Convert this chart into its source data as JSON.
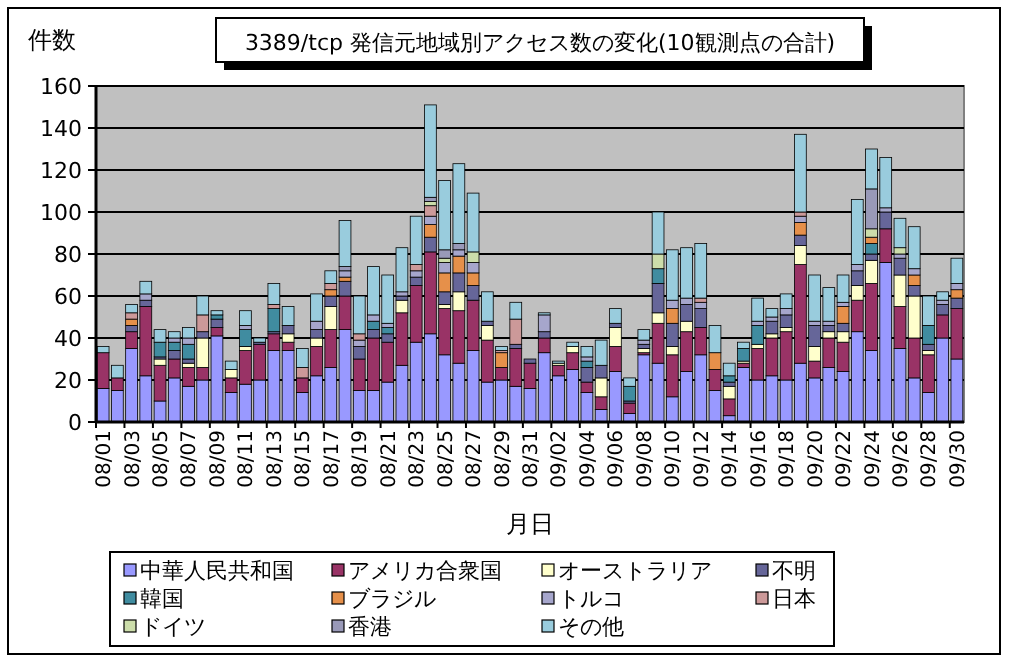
{
  "chart_data": {
    "type": "bar",
    "stacked": true,
    "title": "3389/tcp 発信元地域別アクセス数の変化(10観測点の合計)",
    "xlabel": "月日",
    "ylabel": "件数",
    "categories": [
      "08/01",
      null,
      "08/03",
      null,
      "08/05",
      null,
      "08/07",
      null,
      "08/09",
      null,
      "08/11",
      null,
      "08/13",
      null,
      "08/15",
      null,
      "08/17",
      null,
      "08/19",
      null,
      "08/21",
      null,
      "08/23",
      null,
      "08/25",
      null,
      "08/27",
      null,
      "08/29",
      null,
      "08/31",
      null,
      "09/02",
      null,
      "09/04",
      null,
      "09/06",
      null,
      "09/08",
      null,
      "09/10",
      null,
      "09/12",
      null,
      "09/14",
      null,
      "09/16",
      null,
      "09/18",
      null,
      "09/20",
      null,
      "09/22",
      null,
      "09/24",
      null,
      "09/26",
      null,
      "09/28",
      null,
      "09/30"
    ],
    "ylim": [
      0,
      160
    ],
    "yticks": [
      0,
      20,
      40,
      60,
      80,
      100,
      120,
      140,
      160
    ],
    "grid": "y",
    "legend": "bottom",
    "series": [
      {
        "name": "中華人民共和国",
        "color": "#9999ff",
        "values": [
          16,
          15,
          35,
          22,
          10,
          21,
          17,
          20,
          41,
          14,
          18,
          20,
          34,
          34,
          14,
          22,
          26,
          44,
          15,
          15,
          19,
          27,
          38,
          42,
          32,
          28,
          34,
          19,
          20,
          17,
          16,
          33,
          22,
          25,
          14,
          6,
          24,
          4,
          32,
          28,
          12,
          24,
          32,
          15,
          3,
          26,
          20,
          22,
          20,
          28,
          21,
          26,
          24,
          43,
          34,
          76,
          35,
          21,
          14,
          40,
          30
        ]
      },
      {
        "name": "アメリカ合衆国",
        "color": "#993366",
        "values": [
          17,
          6,
          8,
          33,
          17,
          9,
          9,
          6,
          4,
          7,
          16,
          17,
          8,
          4,
          7,
          14,
          18,
          16,
          15,
          25,
          19,
          25,
          27,
          39,
          22,
          25,
          24,
          20,
          6,
          18,
          12,
          7,
          5,
          8,
          5,
          6,
          12,
          5,
          1,
          19,
          20,
          19,
          13,
          10,
          8,
          2,
          15,
          18,
          23,
          47,
          8,
          14,
          14,
          15,
          32,
          16,
          20,
          19,
          18,
          11,
          24
        ]
      },
      {
        "name": "オーストラリア",
        "color": "#ffffcc",
        "values": [
          0,
          0,
          0,
          0,
          3,
          0,
          2,
          14,
          0,
          4,
          2,
          0,
          0,
          4,
          0,
          4,
          11,
          0,
          0,
          0,
          0,
          6,
          0,
          0,
          2,
          9,
          0,
          7,
          0,
          0,
          0,
          0,
          1,
          3,
          0,
          9,
          9,
          0,
          2,
          5,
          4,
          5,
          0,
          0,
          6,
          1,
          2,
          2,
          2,
          9,
          7,
          3,
          5,
          7,
          11,
          0,
          15,
          20,
          2,
          0,
          0
        ]
      },
      {
        "name": "不明",
        "color": "#666699",
        "values": [
          0,
          0,
          3,
          3,
          1,
          4,
          2,
          3,
          4,
          0,
          0,
          1,
          1,
          4,
          0,
          4,
          5,
          7,
          6,
          4,
          4,
          2,
          4,
          7,
          6,
          9,
          7,
          2,
          0,
          2,
          2,
          3,
          0,
          0,
          7,
          6,
          2,
          1,
          2,
          14,
          11,
          8,
          9,
          0,
          2,
          0,
          0,
          6,
          6,
          5,
          10,
          3,
          4,
          7,
          3,
          8,
          8,
          5,
          3,
          5,
          5
        ]
      },
      {
        "name": "韓国",
        "color": "#408ca0",
        "values": [
          0,
          0,
          0,
          0,
          7,
          4,
          7,
          0,
          2,
          0,
          8,
          0,
          11,
          0,
          0,
          0,
          0,
          0,
          0,
          4,
          3,
          0,
          0,
          0,
          0,
          0,
          0,
          0,
          0,
          0,
          0,
          0,
          0,
          0,
          3,
          0,
          0,
          7,
          0,
          7,
          0,
          0,
          0,
          0,
          3,
          6,
          9,
          0,
          0,
          0,
          0,
          0,
          0,
          0,
          5,
          0,
          0,
          0,
          9,
          0,
          0
        ]
      },
      {
        "name": "ブラジル",
        "color": "#e6904a",
        "values": [
          0,
          0,
          3,
          0,
          0,
          0,
          0,
          0,
          0,
          0,
          0,
          0,
          0,
          0,
          0,
          0,
          3,
          2,
          0,
          0,
          0,
          0,
          0,
          6,
          9,
          8,
          6,
          0,
          7,
          0,
          0,
          0,
          0,
          0,
          0,
          0,
          0,
          0,
          0,
          0,
          7,
          0,
          0,
          8,
          0,
          0,
          0,
          0,
          0,
          6,
          0,
          0,
          8,
          0,
          3,
          0,
          0,
          5,
          0,
          0,
          4
        ]
      },
      {
        "name": "トルコ",
        "color": "#a6a6cc",
        "values": [
          0,
          0,
          0,
          3,
          0,
          2,
          3,
          0,
          0,
          0,
          2,
          0,
          0,
          0,
          0,
          4,
          0,
          3,
          3,
          3,
          2,
          2,
          3,
          4,
          5,
          3,
          5,
          0,
          0,
          0,
          0,
          8,
          0,
          0,
          2,
          0,
          0,
          0,
          2,
          0,
          4,
          3,
          3,
          0,
          0,
          0,
          2,
          2,
          3,
          3,
          2,
          2,
          2,
          3,
          0,
          2,
          2,
          3,
          0,
          2,
          3
        ]
      },
      {
        "name": "日本",
        "color": "#cc9999",
        "values": [
          0,
          0,
          3,
          0,
          0,
          0,
          0,
          8,
          0,
          0,
          0,
          0,
          2,
          0,
          5,
          0,
          3,
          0,
          3,
          0,
          0,
          0,
          3,
          5,
          0,
          0,
          0,
          0,
          1,
          12,
          0,
          0,
          0,
          0,
          0,
          0,
          0,
          0,
          0,
          0,
          0,
          0,
          2,
          0,
          0,
          0,
          0,
          0,
          0,
          2,
          0,
          0,
          0,
          0,
          0,
          0,
          0,
          0,
          0,
          0,
          0
        ]
      },
      {
        "name": "ドイツ",
        "color": "#ccddaa",
        "values": [
          0,
          0,
          0,
          0,
          0,
          0,
          0,
          0,
          0,
          0,
          0,
          0,
          0,
          0,
          0,
          0,
          0,
          0,
          0,
          0,
          0,
          0,
          0,
          2,
          2,
          0,
          5,
          0,
          0,
          0,
          0,
          0,
          0,
          0,
          0,
          0,
          0,
          0,
          0,
          7,
          0,
          0,
          0,
          0,
          0,
          0,
          0,
          0,
          0,
          0,
          0,
          0,
          0,
          0,
          4,
          0,
          3,
          0,
          0,
          0,
          0
        ]
      },
      {
        "name": "香港",
        "color": "#9999b8",
        "values": [
          0,
          0,
          0,
          0,
          0,
          0,
          0,
          0,
          0,
          0,
          0,
          0,
          0,
          0,
          0,
          0,
          0,
          2,
          0,
          0,
          0,
          0,
          0,
          2,
          4,
          3,
          0,
          0,
          0,
          0,
          0,
          0,
          0,
          0,
          0,
          0,
          0,
          0,
          0,
          0,
          0,
          0,
          0,
          0,
          0,
          0,
          0,
          0,
          0,
          0,
          0,
          0,
          0,
          0,
          19,
          0,
          0,
          0,
          0,
          0,
          0
        ]
      },
      {
        "name": "その他",
        "color": "#99ccdd",
        "values": [
          3,
          6,
          4,
          6,
          6,
          3,
          5,
          9,
          2,
          4,
          7,
          2,
          10,
          9,
          9,
          13,
          6,
          22,
          18,
          23,
          23,
          21,
          23,
          44,
          33,
          38,
          28,
          14,
          2,
          8,
          0,
          1,
          1,
          2,
          5,
          12,
          7,
          4,
          5,
          20,
          24,
          24,
          26,
          13,
          6,
          3,
          11,
          4,
          7,
          37,
          22,
          16,
          13,
          31,
          19,
          24,
          14,
          20,
          14,
          4,
          12
        ]
      }
    ]
  }
}
